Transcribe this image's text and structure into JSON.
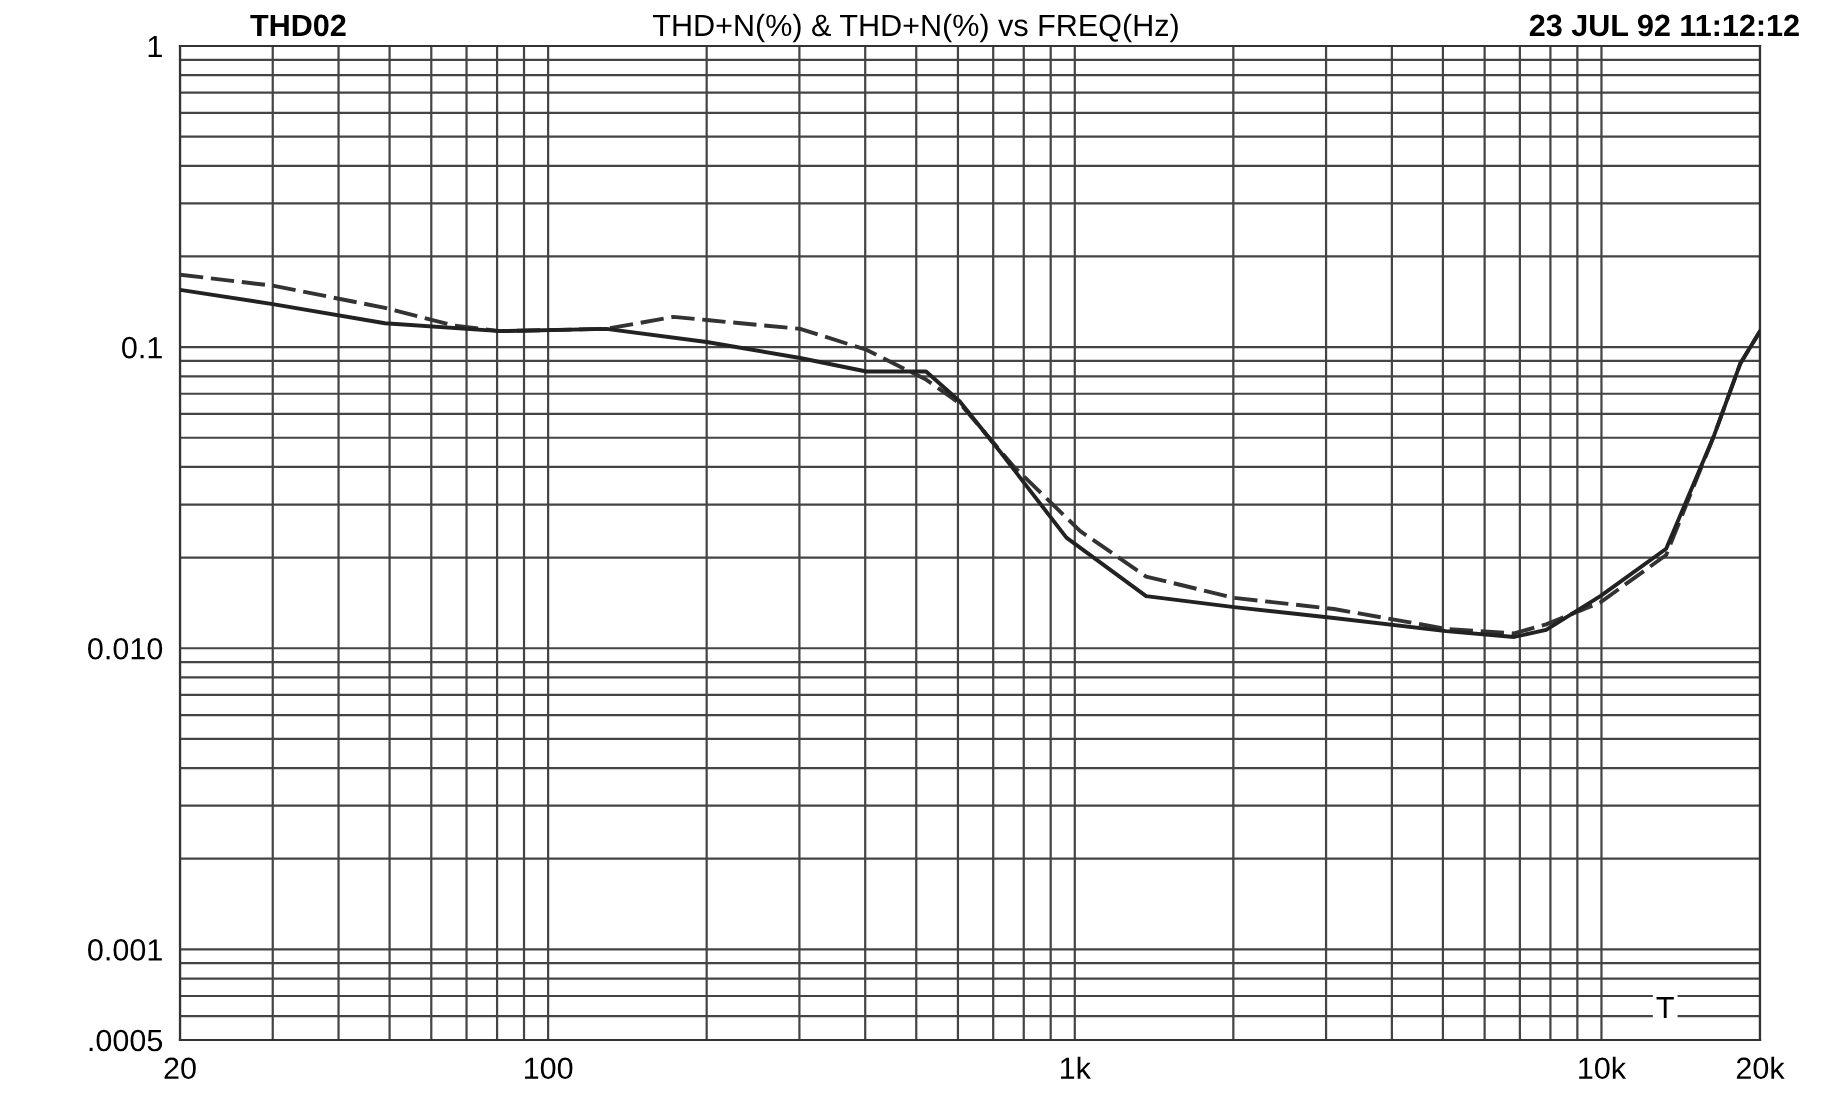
{
  "chart_data": {
    "type": "line",
    "title": "THD+N(%) & THD+N(%) vs FREQ(Hz)",
    "annotations": [
      "THD02",
      "23 JUL 92 11:12:12",
      "T"
    ],
    "series": [
      {
        "color": "#333333",
        "line_style": "dashed",
        "x": [
          20,
          30,
          49,
          66,
          81,
          129,
          173,
          200,
          301,
          402,
          522,
          605,
          767,
          1024,
          1366,
          2007,
          3105,
          5070,
          6826,
          7852,
          9952,
          13270,
          16370,
          18340,
          20000
        ],
        "values": [
          0.174,
          0.16,
          0.135,
          0.118,
          0.113,
          0.115,
          0.126,
          0.123,
          0.115,
          0.098,
          0.078,
          0.065,
          0.04,
          0.0245,
          0.0173,
          0.0147,
          0.0135,
          0.0116,
          0.0112,
          0.012,
          0.0142,
          0.0204,
          0.051,
          0.088,
          0.113
        ]
      },
      {
        "color": "#222222",
        "line_style": "solid",
        "x": [
          20,
          30,
          49,
          81,
          129,
          200,
          301,
          402,
          522,
          605,
          721,
          964,
          1366,
          2007,
          3105,
          5070,
          6826,
          7852,
          9952,
          13270,
          16370,
          18340,
          20000
        ],
        "values": [
          0.155,
          0.139,
          0.12,
          0.113,
          0.115,
          0.104,
          0.092,
          0.083,
          0.083,
          0.066,
          0.045,
          0.0233,
          0.0149,
          0.0137,
          0.0126,
          0.0114,
          0.0109,
          0.0115,
          0.0149,
          0.0214,
          0.051,
          0.088,
          0.113
        ]
      }
    ],
    "log": "xy",
    "grid": true,
    "marker": "none",
    "legend": false,
    "xlim": [
      20,
      20000
    ],
    "xticks": [
      20,
      {
        "value": 30,
        "label": null
      },
      {
        "value": 40,
        "label": null
      },
      {
        "value": 50,
        "label": null
      },
      {
        "value": 60,
        "label": null
      },
      {
        "value": 70,
        "label": null
      },
      {
        "value": 80,
        "label": null
      },
      {
        "value": 90,
        "label": null
      },
      100,
      {
        "value": 200,
        "label": null
      },
      {
        "value": 300,
        "label": null
      },
      {
        "value": 400,
        "label": null
      },
      {
        "value": 500,
        "label": null
      },
      {
        "value": 600,
        "label": null
      },
      {
        "value": 700,
        "label": null
      },
      {
        "value": 800,
        "label": null
      },
      {
        "value": 900,
        "label": null
      },
      {
        "value": 1000,
        "label": "1k"
      },
      {
        "value": 2000,
        "label": null
      },
      {
        "value": 3000,
        "label": null
      },
      {
        "value": 4000,
        "label": null
      },
      {
        "value": 5000,
        "label": null
      },
      {
        "value": 6000,
        "label": null
      },
      {
        "value": 7000,
        "label": null
      },
      {
        "value": 8000,
        "label": null
      },
      {
        "value": 9000,
        "label": null
      },
      {
        "value": 10000,
        "label": "10k"
      },
      {
        "value": 20000,
        "label": "20k"
      }
    ],
    "ylim": [
      0.0005,
      1
    ],
    "yticks": [
      {
        "value": 0.0005,
        "label": ".0005"
      },
      {
        "value": 0.0006,
        "label": null
      },
      {
        "value": 0.0007,
        "label": null
      },
      {
        "value": 0.0008,
        "label": null
      },
      {
        "value": 0.0009,
        "label": null
      },
      0.001,
      {
        "value": 0.002,
        "label": null
      },
      {
        "value": 0.003,
        "label": null
      },
      {
        "value": 0.004,
        "label": null
      },
      {
        "value": 0.005,
        "label": null
      },
      {
        "value": 0.006,
        "label": null
      },
      {
        "value": 0.007,
        "label": null
      },
      {
        "value": 0.008,
        "label": null
      },
      {
        "value": 0.009,
        "label": null
      },
      {
        "value": 0.01,
        "label": "0.010"
      },
      {
        "value": 0.02,
        "label": null
      },
      {
        "value": 0.03,
        "label": null
      },
      {
        "value": 0.04,
        "label": null
      },
      {
        "value": 0.05,
        "label": null
      },
      {
        "value": 0.06,
        "label": null
      },
      {
        "value": 0.07,
        "label": null
      },
      {
        "value": 0.08,
        "label": null
      },
      {
        "value": 0.09,
        "label": null
      },
      0.1,
      {
        "value": 0.2,
        "label": null
      },
      {
        "value": 0.3,
        "label": null
      },
      {
        "value": 0.4,
        "label": null
      },
      {
        "value": 0.5,
        "label": null
      },
      {
        "value": 0.6,
        "label": null
      },
      {
        "value": 0.7,
        "label": null
      },
      {
        "value": 0.8,
        "label": null
      },
      {
        "value": 0.9,
        "label": null
      },
      1
    ]
  }
}
